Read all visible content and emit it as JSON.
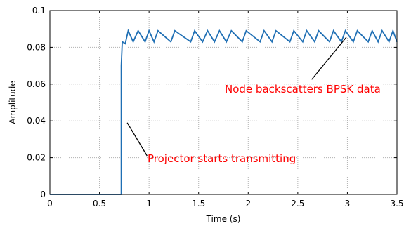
{
  "chart_data": {
    "type": "line",
    "title": "",
    "xlabel": "Time (s)",
    "ylabel": "Amplitude",
    "xlim": [
      0,
      3.5
    ],
    "ylim": [
      0,
      0.1
    ],
    "xticks": [
      0,
      0.5,
      1,
      1.5,
      2,
      2.5,
      3,
      3.5
    ],
    "xtick_labels": [
      "0",
      "0.5",
      "1",
      "1.5",
      "2",
      "2.5",
      "3",
      "3.5"
    ],
    "yticks": [
      0,
      0.02,
      0.04,
      0.06,
      0.08,
      0.1
    ],
    "ytick_labels": [
      "0",
      "0.02",
      "0.04",
      "0.06",
      "0.08",
      "0.1"
    ],
    "grid": true,
    "series": [
      {
        "color": "#1f6fb4",
        "x": [
          0,
          0.72,
          0.72,
          0.73,
          0.73,
          0.76,
          0.76,
          0.79,
          0.79,
          0.84,
          0.84,
          0.89,
          0.89,
          0.96,
          0.96,
          1.0,
          1.0,
          1.05,
          1.05,
          1.09,
          1.09,
          1.22,
          1.22,
          1.26,
          1.26,
          1.42,
          1.42,
          1.46,
          1.46,
          1.54,
          1.54,
          1.59,
          1.59,
          1.66,
          1.66,
          1.71,
          1.71,
          1.78,
          1.78,
          1.83,
          1.83,
          1.94,
          1.94,
          1.98,
          1.98,
          2.12,
          2.12,
          2.16,
          2.16,
          2.24,
          2.24,
          2.28,
          2.28,
          2.42,
          2.42,
          2.46,
          2.46,
          2.55,
          2.55,
          2.59,
          2.59,
          2.67,
          2.67,
          2.71,
          2.71,
          2.82,
          2.82,
          2.86,
          2.86,
          2.94,
          2.94,
          2.98,
          2.98,
          3.06,
          3.06,
          3.1,
          3.1,
          3.21,
          3.21,
          3.25,
          3.25,
          3.31,
          3.31,
          3.35,
          3.35,
          3.42,
          3.42,
          3.46,
          3.46,
          3.5
        ],
        "y": [
          0,
          0,
          0.07,
          0.083,
          0.083,
          0.082,
          0.082,
          0.089,
          0.089,
          0.083,
          0.083,
          0.089,
          0.089,
          0.083,
          0.083,
          0.089,
          0.089,
          0.083,
          0.083,
          0.089,
          0.089,
          0.083,
          0.083,
          0.089,
          0.089,
          0.083,
          0.083,
          0.089,
          0.089,
          0.083,
          0.083,
          0.089,
          0.089,
          0.083,
          0.083,
          0.089,
          0.089,
          0.083,
          0.083,
          0.089,
          0.089,
          0.083,
          0.083,
          0.089,
          0.089,
          0.083,
          0.083,
          0.089,
          0.089,
          0.083,
          0.083,
          0.089,
          0.089,
          0.083,
          0.083,
          0.089,
          0.089,
          0.083,
          0.083,
          0.089,
          0.089,
          0.083,
          0.083,
          0.089,
          0.089,
          0.083,
          0.083,
          0.089,
          0.089,
          0.083,
          0.083,
          0.089,
          0.089,
          0.083,
          0.083,
          0.089,
          0.089,
          0.083,
          0.083,
          0.089,
          0.089,
          0.083,
          0.083,
          0.089,
          0.089,
          0.083,
          0.083,
          0.089,
          0.089,
          0.083
        ]
      }
    ],
    "annotations": [
      {
        "text": "Node backscatters BPSK data",
        "color": "#ff0000",
        "point_at": [
          2.99,
          0.0855
        ],
        "line_from": [
          2.64,
          0.0625
        ]
      },
      {
        "text": "Projector starts transmitting",
        "color": "#ff0000",
        "point_at": [
          0.78,
          0.039
        ],
        "line_from": [
          0.98,
          0.021
        ]
      }
    ]
  }
}
